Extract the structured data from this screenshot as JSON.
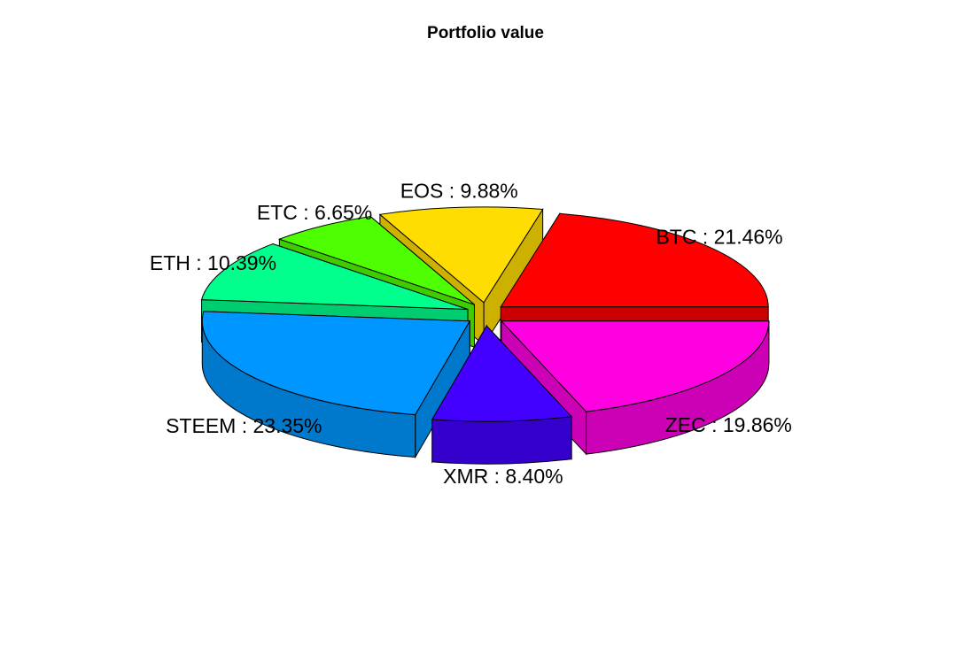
{
  "chart_data": {
    "type": "pie",
    "style": "3d-exploded",
    "title": "Portfolio value",
    "slices": [
      {
        "name": "BTC",
        "value": 21.46,
        "label": "BTC : 21.46%",
        "color": "#FF0000",
        "side": "#CC0000"
      },
      {
        "name": "EOS",
        "value": 9.88,
        "label": "EOS : 9.88%",
        "color": "#FFDD00",
        "side": "#CCB100"
      },
      {
        "name": "ETC",
        "value": 6.65,
        "label": "ETC : 6.65%",
        "color": "#4DFF00",
        "side": "#3ECC00"
      },
      {
        "name": "ETH",
        "value": 10.39,
        "label": "ETH : 10.39%",
        "color": "#00FF8C",
        "side": "#00CC70"
      },
      {
        "name": "STEEM",
        "value": 23.35,
        "label": "STEEM : 23.35%",
        "color": "#0096FF",
        "side": "#0078CC"
      },
      {
        "name": "XMR",
        "value": 8.4,
        "label": "XMR : 8.40%",
        "color": "#4400FF",
        "side": "#3600CC"
      },
      {
        "name": "ZEC",
        "value": 19.86,
        "label": "ZEC : 19.86%",
        "color": "#FF00E1",
        "side": "#CC00B4"
      }
    ]
  }
}
